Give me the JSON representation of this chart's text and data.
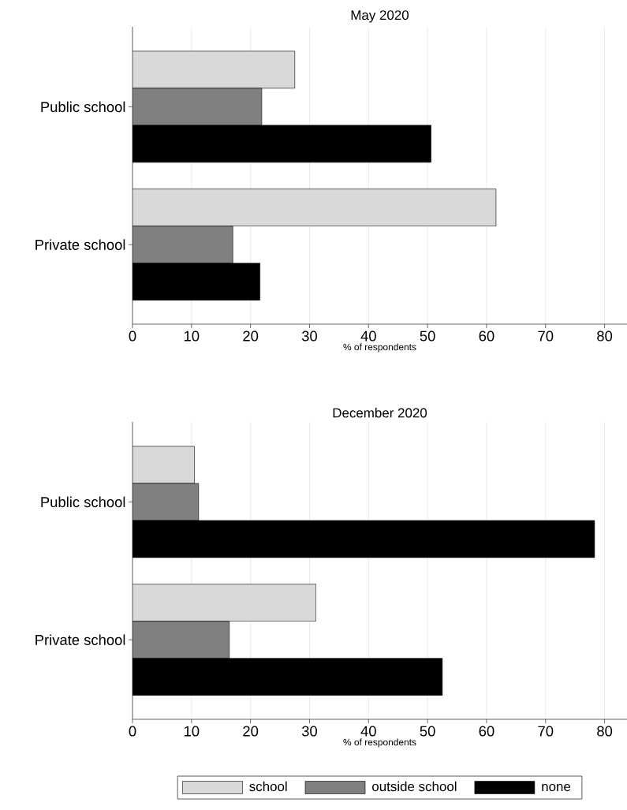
{
  "chart_data": [
    {
      "type": "bar",
      "orientation": "horizontal",
      "title": "May 2020",
      "xlabel": "% of respondents",
      "categories": [
        "Public school",
        "Private school"
      ],
      "xlim": [
        0,
        83.8
      ],
      "xticks": [
        0,
        10,
        20,
        30,
        40,
        50,
        60,
        70,
        80
      ],
      "grid": "x",
      "series": [
        {
          "color": "#d9d9d9",
          "values": [
            27.5,
            61.6
          ]
        },
        {
          "color": "#808080",
          "values": [
            21.9,
            17.0
          ]
        },
        {
          "color": "#000000",
          "values": [
            50.6,
            21.6
          ]
        }
      ]
    },
    {
      "type": "bar",
      "orientation": "horizontal",
      "title": "December 2020",
      "xlabel": "% of respondents",
      "categories": [
        "Public school",
        "Private school"
      ],
      "xlim": [
        0,
        83.8
      ],
      "xticks": [
        0,
        10,
        20,
        30,
        40,
        50,
        60,
        70,
        80
      ],
      "grid": "x",
      "legend": "bottom",
      "series": [
        {
          "name": "school",
          "color": "#d9d9d9",
          "values": [
            10.5,
            31.1
          ]
        },
        {
          "name": "outside school",
          "color": "#808080",
          "values": [
            11.2,
            16.4
          ]
        },
        {
          "name": "none",
          "color": "#000000",
          "values": [
            78.3,
            52.5
          ]
        }
      ]
    }
  ]
}
